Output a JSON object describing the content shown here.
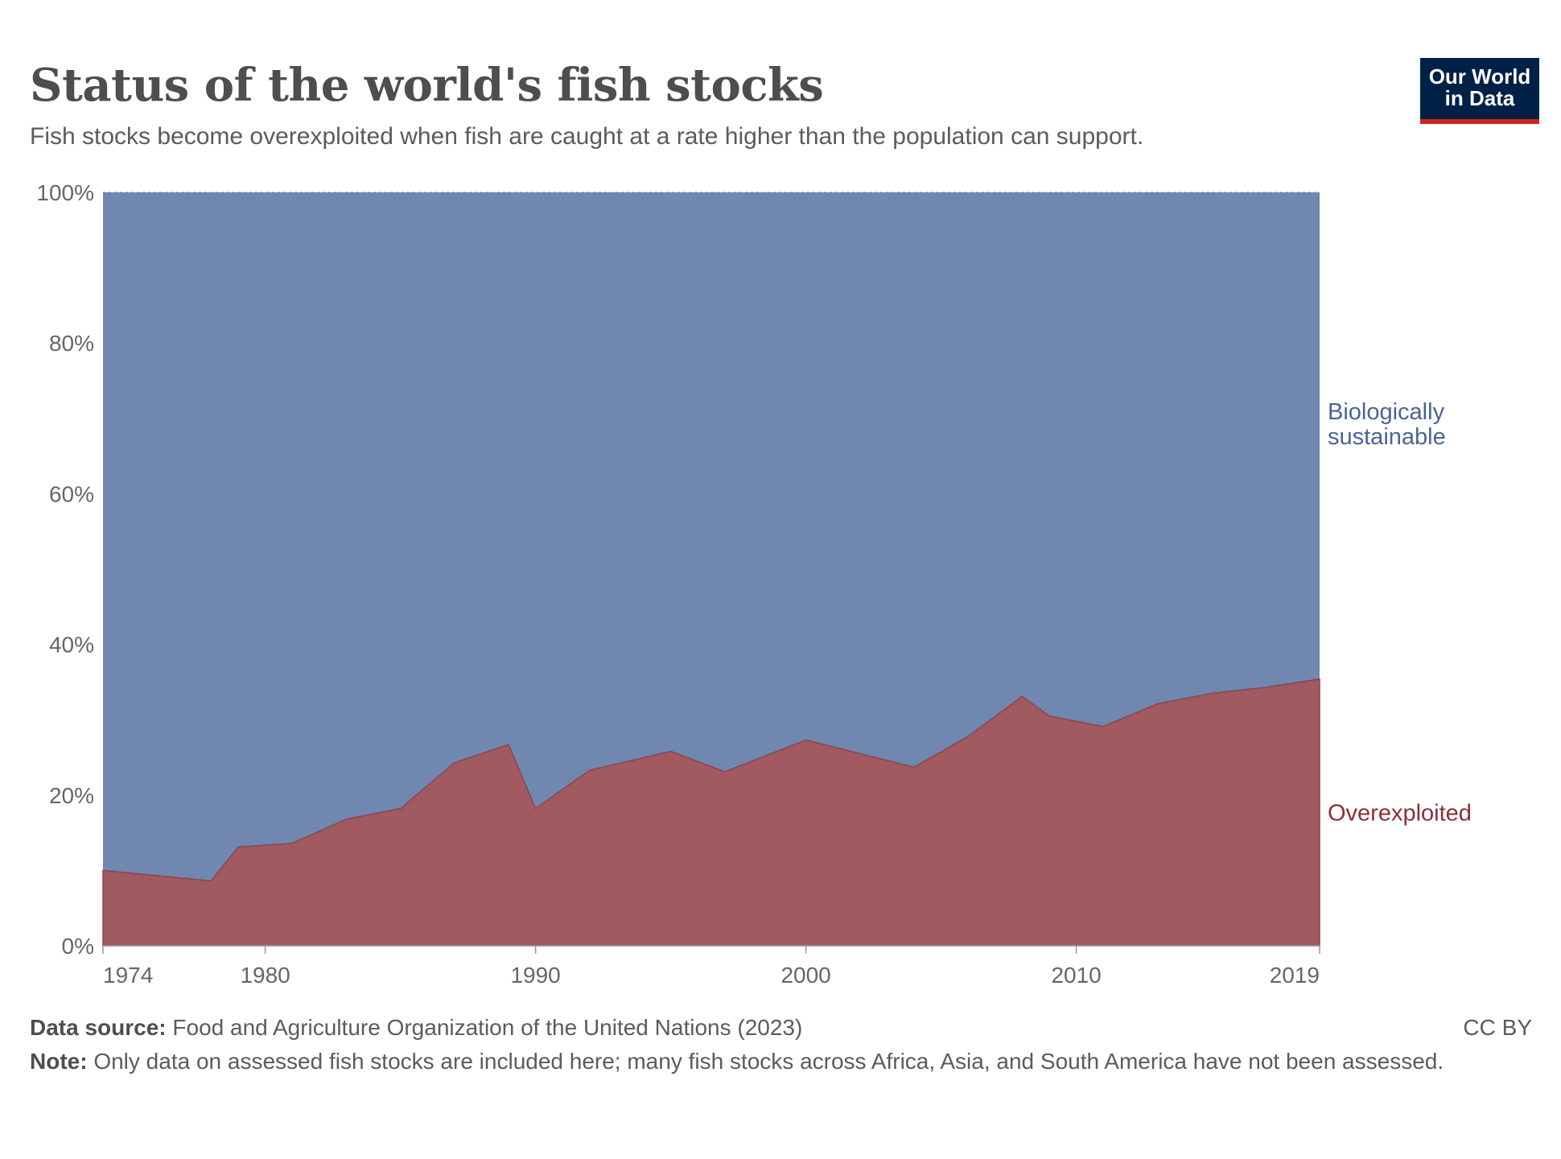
{
  "header": {
    "title": "Status of the world's fish stocks",
    "subtitle": "Fish stocks become overexploited when fish are caught at a rate higher than the population can support."
  },
  "logo": {
    "line1": "Our World",
    "line2": "in Data"
  },
  "footer": {
    "source_label": "Data source:",
    "source_text": "Food and Agriculture Organization of the United Nations (2023)",
    "note_label": "Note:",
    "note_text": "Only data on assessed fish stocks are included here; many fish stocks across Africa, Asia, and South America have not been assessed.",
    "license": "CC BY"
  },
  "colors": {
    "sustainable": "#7088b0",
    "overexploited": "#a05a60",
    "sustainable_label": "#4a6496",
    "overexploited_label": "#8b2f3a"
  },
  "chart_data": {
    "type": "area",
    "stacked": true,
    "title": "Status of the world's fish stocks",
    "xlabel": "",
    "ylabel": "",
    "xlim": [
      1974,
      2019
    ],
    "ylim": [
      0,
      100
    ],
    "y_ticks": [
      0,
      20,
      40,
      60,
      80,
      100
    ],
    "y_tick_labels": [
      "0%",
      "20%",
      "40%",
      "60%",
      "80%",
      "100%"
    ],
    "x_ticks": [
      1974,
      1980,
      1990,
      2000,
      2010,
      2019
    ],
    "x_tick_labels": [
      "1974",
      "1980",
      "1990",
      "2000",
      "2010",
      "2019"
    ],
    "x": [
      1974,
      1978,
      1979,
      1981,
      1983,
      1985,
      1987,
      1989,
      1990,
      1992,
      1995,
      1997,
      2000,
      2004,
      2006,
      2008,
      2009,
      2011,
      2013,
      2015,
      2017,
      2019
    ],
    "series": [
      {
        "name": "Overexploited",
        "label": "Overexploited",
        "values": [
          10.0,
          8.6,
          13.1,
          13.6,
          16.8,
          18.2,
          24.3,
          26.7,
          18.2,
          23.3,
          25.8,
          23.1,
          27.3,
          23.7,
          27.8,
          33.1,
          30.5,
          29.1,
          32.1,
          33.5,
          34.3,
          35.4
        ]
      },
      {
        "name": "Biologically sustainable",
        "label_line1": "Biologically",
        "label_line2": "sustainable",
        "values": [
          90.0,
          91.4,
          86.9,
          86.4,
          83.2,
          81.8,
          75.7,
          73.3,
          81.8,
          76.7,
          74.2,
          76.9,
          72.7,
          76.3,
          72.2,
          66.9,
          69.5,
          70.9,
          67.9,
          66.5,
          65.7,
          64.6
        ]
      }
    ]
  }
}
